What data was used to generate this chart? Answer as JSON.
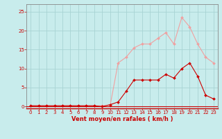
{
  "x": [
    0,
    1,
    2,
    3,
    4,
    5,
    6,
    7,
    8,
    9,
    10,
    11,
    12,
    13,
    14,
    15,
    16,
    17,
    18,
    19,
    20,
    21,
    22,
    23
  ],
  "y_rafales": [
    0.2,
    0.2,
    0.2,
    0.2,
    0.2,
    0.2,
    0.2,
    0.2,
    0.2,
    0.2,
    0.3,
    11.5,
    13,
    15.5,
    16.5,
    16.5,
    18,
    19.5,
    16.5,
    23.5,
    21,
    16.5,
    13,
    11.5
  ],
  "y_moyen": [
    0.2,
    0.2,
    0.2,
    0.2,
    0.2,
    0.2,
    0.2,
    0.2,
    0.2,
    0.0,
    0.5,
    1.2,
    4.0,
    7.0,
    7.0,
    7.0,
    7.0,
    8.5,
    7.5,
    10.0,
    11.5,
    8.0,
    3.0,
    2.0
  ],
  "color_rafales": "#f0a0a0",
  "color_moyen": "#cc0000",
  "bg_color": "#c8ecec",
  "grid_color": "#a8d4d4",
  "xlabel": "Vent moyen/en rafales ( km/h )",
  "xlabel_color": "#cc0000",
  "tick_color": "#cc0000",
  "spine_color": "#888888",
  "ylim": [
    -0.5,
    27
  ],
  "yticks": [
    0,
    5,
    10,
    15,
    20,
    25
  ],
  "xticks": [
    0,
    1,
    2,
    3,
    4,
    5,
    6,
    7,
    8,
    9,
    10,
    11,
    12,
    13,
    14,
    15,
    16,
    17,
    18,
    19,
    20,
    21,
    22,
    23
  ],
  "tick_fontsize": 5.0,
  "xlabel_fontsize": 6.0
}
